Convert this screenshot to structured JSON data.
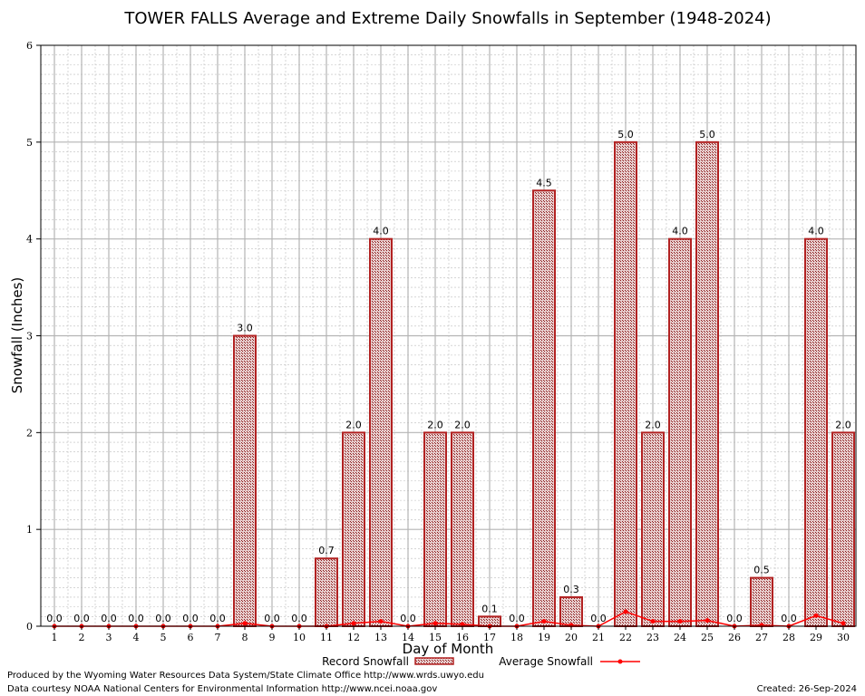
{
  "chart_data": {
    "type": "bar",
    "title": "TOWER FALLS Average and Extreme Daily Snowfalls in September (1948-2024)",
    "xlabel": "Day of Month",
    "ylabel": "Snowfall (Inches)",
    "ylim": [
      0,
      6
    ],
    "yticks": [
      "0",
      "1",
      "2",
      "3",
      "4",
      "5",
      "6"
    ],
    "categories": [
      "1",
      "2",
      "3",
      "4",
      "5",
      "6",
      "7",
      "8",
      "9",
      "10",
      "11",
      "12",
      "13",
      "14",
      "15",
      "16",
      "17",
      "18",
      "19",
      "20",
      "21",
      "22",
      "23",
      "24",
      "25",
      "26",
      "27",
      "28",
      "29",
      "30"
    ],
    "series": [
      {
        "name": "Record Snowfall",
        "kind": "bar",
        "color": "#b22222",
        "values": [
          0.0,
          0.0,
          0.0,
          0.0,
          0.0,
          0.0,
          0.0,
          3.0,
          0.0,
          0.0,
          0.7,
          2.0,
          4.0,
          0.0,
          2.0,
          2.0,
          0.1,
          0.0,
          4.5,
          0.3,
          0.0,
          5.0,
          2.0,
          4.0,
          5.0,
          0.0,
          0.5,
          0.0,
          4.0,
          2.0
        ],
        "labels": [
          "0.0",
          "0.0",
          "0.0",
          "0.0",
          "0.0",
          "0.0",
          "0.0",
          "3.0",
          "0.0",
          "0.0",
          "0.7",
          "2.0",
          "4.0",
          "0.0",
          "2.0",
          "2.0",
          "0.1",
          "0.0",
          "4.5",
          "0.3",
          "0.0",
          "5.0",
          "2.0",
          "4.0",
          "5.0",
          "0.0",
          "0.5",
          "0.0",
          "4.0",
          "2.0"
        ]
      },
      {
        "name": "Average Snowfall",
        "kind": "line",
        "color": "#ff0000",
        "values": [
          0.0,
          0.0,
          0.0,
          0.0,
          0.0,
          0.0,
          0.0,
          0.03,
          0.0,
          0.0,
          0.0,
          0.03,
          0.05,
          0.0,
          0.03,
          0.02,
          0.0,
          0.0,
          0.05,
          0.01,
          0.0,
          0.15,
          0.05,
          0.05,
          0.06,
          0.0,
          0.01,
          0.0,
          0.11,
          0.03
        ]
      }
    ],
    "grid": true,
    "legend_position": "bottom-center"
  },
  "footer": {
    "produced_by": "Produced by the Wyoming Water Resources Data System/State Climate Office http://www.wrds.uwyo.edu",
    "courtesy": "Data courtesy NOAA National Centers for Environmental Information http://www.ncei.noaa.gov",
    "created": "Created:  26-Sep-2024"
  }
}
